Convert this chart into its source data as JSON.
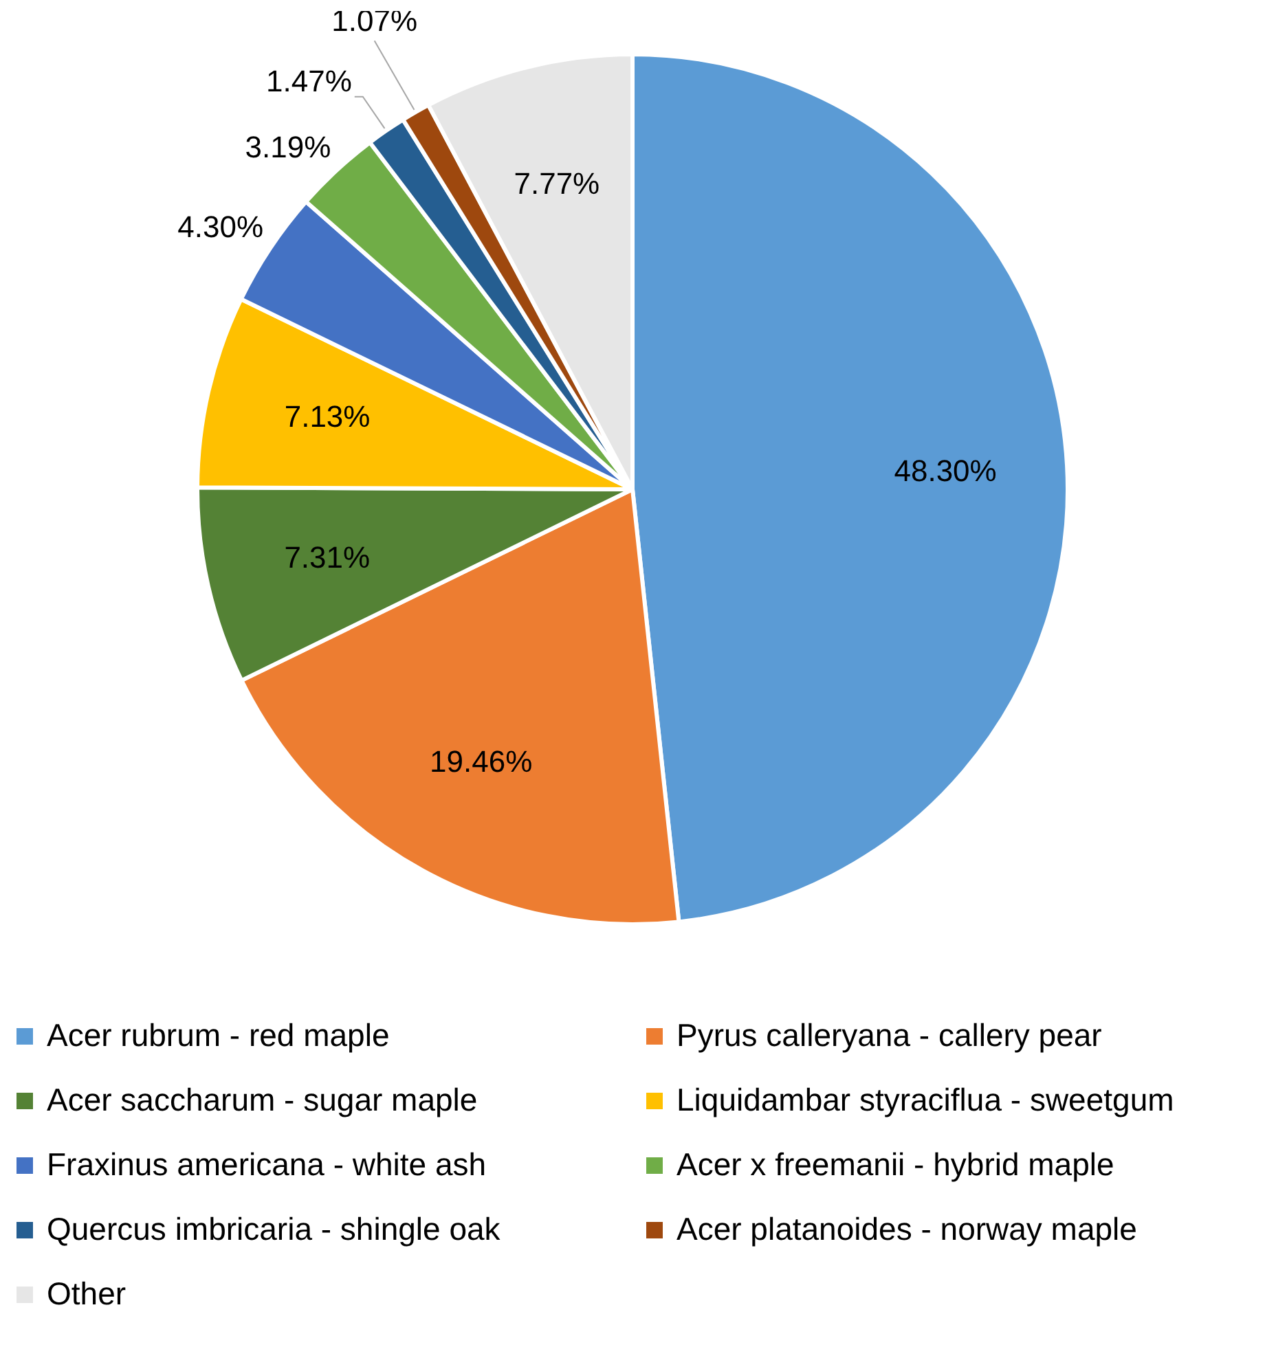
{
  "chart_data": {
    "type": "pie",
    "categories": [
      "Acer rubrum - red maple",
      "Pyrus calleryana - callery pear",
      "Acer saccharum - sugar maple",
      "Liquidambar styraciflua - sweetgum",
      "Fraxinus americana - white ash",
      "Acer x freemanii - hybrid maple",
      "Quercus imbricaria - shingle oak",
      "Acer platanoides - norway maple",
      "Other"
    ],
    "values": [
      48.3,
      19.46,
      7.31,
      7.13,
      4.3,
      3.19,
      1.47,
      1.07,
      7.77
    ],
    "colors": [
      "#5b9bd5",
      "#ed7d31",
      "#548235",
      "#ffc000",
      "#4472c4",
      "#70ad47",
      "#255e91",
      "#9e480e",
      "#e6e6e6"
    ],
    "value_labels": [
      "48.30%",
      "19.46%",
      "7.31%",
      "7.13%",
      "4.30%",
      "3.19%",
      "1.47%",
      "1.07%",
      "7.77%"
    ],
    "legend": "bottom"
  }
}
